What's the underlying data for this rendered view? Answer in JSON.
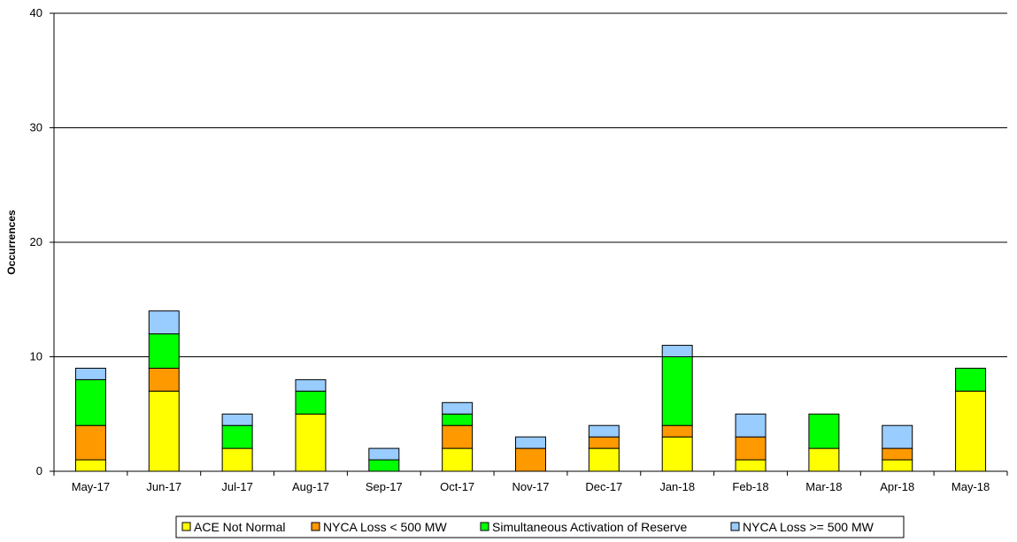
{
  "chart_data": {
    "type": "bar",
    "stacked": true,
    "categories": [
      "May-17",
      "Jun-17",
      "Jul-17",
      "Aug-17",
      "Sep-17",
      "Oct-17",
      "Nov-17",
      "Dec-17",
      "Jan-18",
      "Feb-18",
      "Mar-18",
      "Apr-18",
      "May-18"
    ],
    "series": [
      {
        "name": "ACE Not Normal",
        "color": "#FFFF00",
        "values": [
          1,
          7,
          2,
          5,
          0,
          2,
          0,
          2,
          3,
          1,
          2,
          1,
          7
        ]
      },
      {
        "name": "NYCA Loss < 500 MW",
        "color": "#FF9900",
        "values": [
          3,
          2,
          0,
          0,
          0,
          2,
          2,
          1,
          1,
          2,
          0,
          1,
          0
        ]
      },
      {
        "name": "Simultaneous Activation of Reserve",
        "color": "#00FF00",
        "values": [
          4,
          3,
          2,
          2,
          1,
          1,
          0,
          0,
          6,
          0,
          3,
          0,
          2
        ]
      },
      {
        "name": "NYCA Loss >= 500 MW",
        "color": "#99CCFF",
        "values": [
          1,
          2,
          1,
          1,
          1,
          1,
          1,
          1,
          1,
          2,
          0,
          2,
          0
        ]
      }
    ],
    "title": "",
    "xlabel": "",
    "ylabel": "Occurrences",
    "ylim": [
      0,
      40
    ],
    "yticks": [
      "0",
      "10",
      "20",
      "30",
      "40"
    ],
    "grid": true,
    "legend_position": "bottom"
  }
}
